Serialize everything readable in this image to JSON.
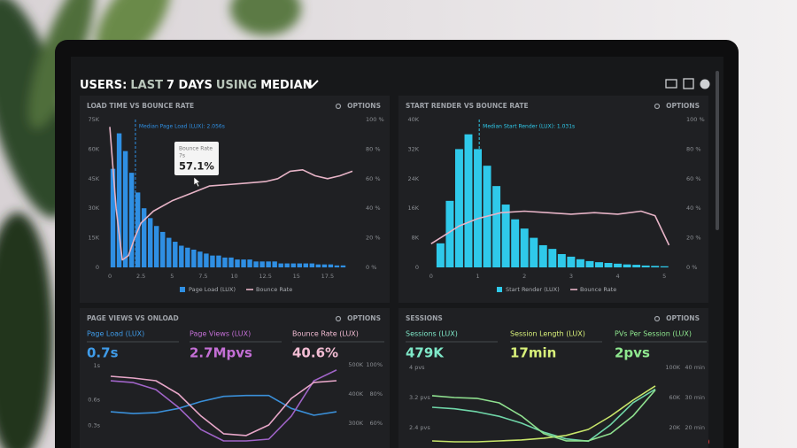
{
  "header": {
    "title_parts": [
      "USERS:",
      "LAST",
      "7 DAYS",
      "USING",
      "MEDIAN"
    ]
  },
  "chart_data": [
    {
      "type": "histogram",
      "title": "LOAD TIME VS BOUNCE RATE",
      "options": "OPTIONS",
      "legend": true,
      "bins": [
        0,
        0.5,
        1,
        1.5,
        2,
        2.5,
        3,
        3.5,
        4,
        4.5,
        5,
        5.5,
        6,
        6.5,
        7,
        7.5,
        8,
        8.5,
        9,
        9.5,
        10,
        10.5,
        11,
        11.5,
        12,
        12.5,
        13,
        13.5,
        14,
        14.5,
        15,
        15.5,
        16,
        16.5,
        17,
        17.5,
        18,
        18.5,
        19
      ],
      "xlim": [
        -0.43,
        20
      ],
      "xticks": [
        0,
        2.5,
        5,
        7.5,
        10,
        12.5,
        15,
        17.5
      ],
      "ylim": [
        0,
        75000
      ],
      "yticks": [
        0,
        {
          "value": 15000,
          "label": "15K"
        },
        {
          "value": 30000,
          "label": "30K"
        },
        {
          "value": 45000,
          "label": "45K"
        },
        {
          "value": 60000,
          "label": "60K"
        },
        {
          "value": 75000,
          "label": "75K"
        }
      ],
      "y2lim": [
        0,
        100
      ],
      "y2ticks": [
        {
          "value": 0,
          "label": "0 %"
        },
        {
          "value": 20,
          "label": "20 %"
        },
        {
          "value": 40,
          "label": "40 %"
        },
        {
          "value": 60,
          "label": "60 %"
        },
        {
          "value": 80,
          "label": "80 %"
        },
        {
          "value": 100,
          "label": "100 %"
        }
      ],
      "series": [
        {
          "name": "Page Load (LUX)",
          "color": "#2f8fe3",
          "values": [
            50000,
            68000,
            59000,
            48000,
            38000,
            30000,
            25000,
            21000,
            18000,
            15000,
            13000,
            11000,
            10000,
            9000,
            8000,
            7000,
            6000,
            6000,
            5000,
            5000,
            4000,
            4000,
            4000,
            3000,
            3000,
            3000,
            3000,
            2000,
            2000,
            2000,
            2000,
            2000,
            2000,
            1500,
            1500,
            1500,
            1000,
            1000
          ]
        },
        {
          "name": "Bounce Rate",
          "color": "#e6b3c6",
          "type": "line",
          "axis": "y2",
          "x": [
            0,
            0.5,
            1,
            1.5,
            2,
            2.5,
            3.5,
            5,
            6.5,
            8,
            9.5,
            11,
            12.5,
            13.5,
            14.5,
            15.5,
            16.5,
            17.5,
            18.5,
            19.5
          ],
          "values": [
            95,
            40,
            5,
            8,
            20,
            30,
            38,
            45,
            50,
            55,
            56,
            57,
            58,
            60,
            65,
            66,
            62,
            60,
            62,
            65
          ]
        }
      ],
      "annotations": [
        {
          "text": "Median Page Load (LUX): 2.056s",
          "x": 2.056
        }
      ],
      "tooltip": {
        "title": "Bounce Rate",
        "x_label": "7s",
        "value_label": "57.1%"
      }
    },
    {
      "type": "histogram",
      "title": "START RENDER VS BOUNCE RATE",
      "options": "OPTIONS",
      "legend": true,
      "bins": [
        0.1,
        0.3,
        0.5,
        0.7,
        0.9,
        1.1,
        1.3,
        1.5,
        1.7,
        1.9,
        2.1,
        2.3,
        2.5,
        2.7,
        2.9,
        3.1,
        3.3,
        3.5,
        3.7,
        3.9,
        4.1,
        4.3,
        4.5,
        4.7,
        4.9,
        5.1
      ],
      "xlim": [
        -0.13,
        5.28
      ],
      "xticks": [
        0,
        1,
        2,
        3,
        4,
        5
      ],
      "ylim": [
        0,
        40000
      ],
      "yticks": [
        0,
        {
          "value": 8000,
          "label": "8K"
        },
        {
          "value": 16000,
          "label": "16K"
        },
        {
          "value": 24000,
          "label": "24K"
        },
        {
          "value": 32000,
          "label": "32K"
        },
        {
          "value": 40000,
          "label": "40K"
        }
      ],
      "y2lim": [
        0,
        100
      ],
      "y2ticks": [
        {
          "value": 0,
          "label": "0 %"
        },
        {
          "value": 20,
          "label": "20 %"
        },
        {
          "value": 40,
          "label": "40 %"
        },
        {
          "value": 60,
          "label": "60 %"
        },
        {
          "value": 80,
          "label": "80 %"
        },
        {
          "value": 100,
          "label": "100 %"
        }
      ],
      "series": [
        {
          "name": "Start Render (LUX)",
          "color": "#2fc9ea",
          "values": [
            6500,
            18000,
            32000,
            36000,
            32000,
            27500,
            22000,
            17000,
            13000,
            10500,
            8000,
            6000,
            5000,
            3600,
            2900,
            2200,
            1700,
            1400,
            1200,
            1000,
            800,
            700,
            500,
            400,
            300
          ]
        },
        {
          "name": "Bounce Rate",
          "color": "#e6b3c6",
          "type": "line",
          "axis": "y2",
          "x": [
            0,
            0.3,
            0.6,
            1,
            1.5,
            2,
            2.5,
            3,
            3.5,
            4,
            4.5,
            4.8,
            5.1
          ],
          "values": [
            16,
            22,
            28,
            33,
            37,
            38,
            37,
            36,
            37,
            36,
            38,
            35,
            15
          ]
        }
      ],
      "annotations": [
        {
          "text": "Median Start Render (LUX): 1.031s",
          "x": 1.031
        }
      ]
    },
    {
      "type": "line",
      "title": "PAGE VIEWS VS ONLOAD",
      "options": "OPTIONS",
      "kpis": [
        {
          "label": "Page Load (LUX)",
          "value": "0.7s",
          "color": "#3f9be8"
        },
        {
          "label": "Page Views (LUX)",
          "value": "2.7Mpvs",
          "color": "#c46fd6"
        },
        {
          "label": "Bounce Rate (LUX)",
          "value": "40.6%",
          "color": "#f2bcd3"
        }
      ],
      "ylim": [
        0.1,
        1.05
      ],
      "yticks": [
        {
          "value": 1,
          "label": "1s"
        },
        {
          "value": 0.6,
          "label": "0.6s"
        },
        {
          "value": 0.3,
          "label": "0.3s"
        }
      ],
      "y2lim": [
        233000,
        512000
      ],
      "y2ticks": [
        {
          "value": 500000,
          "label": "500K"
        },
        {
          "value": 400000,
          "label": "400K"
        },
        {
          "value": 300000,
          "label": "300K"
        }
      ],
      "y3lim": [
        46.7,
        102.4
      ],
      "y3ticks": [
        {
          "value": 100,
          "label": "100%"
        },
        {
          "value": 80,
          "label": "80%"
        },
        {
          "value": 60,
          "label": "60%"
        }
      ],
      "series": [
        {
          "name": "Page Load (LUX)",
          "color": "#3a8fd8",
          "values": [
            0.46,
            0.44,
            0.45,
            0.5,
            0.58,
            0.64,
            0.65,
            0.65,
            0.5,
            0.42,
            0.46
          ]
        },
        {
          "name": "Page Views (LUX)",
          "color": "#a064c8",
          "axis": "y2",
          "values": [
            445000,
            439000,
            415000,
            354000,
            278000,
            239000,
            239000,
            245000,
            324000,
            445000,
            482000
          ]
        },
        {
          "name": "Bounce Rate (LUX)",
          "color": "#e7a6c8",
          "axis": "y3",
          "values": [
            92.1,
            90.9,
            89.1,
            80,
            64.9,
            52.8,
            51.6,
            58.8,
            77,
            87.9,
            89.1
          ]
        }
      ]
    },
    {
      "type": "line",
      "title": "SESSIONS",
      "options": "OPTIONS",
      "kpis": [
        {
          "label": "Sessions (LUX)",
          "value": "479K",
          "color": "#7fe8c8"
        },
        {
          "label": "Session Length (LUX)",
          "value": "17min",
          "color": "#d8f07a"
        },
        {
          "label": "PVs Per Session (LUX)",
          "value": "2pvs",
          "color": "#8fe88f"
        }
      ],
      "ylim": [
        2.0,
        4.165
      ],
      "yticks": [
        {
          "value": 4,
          "label": "4 pvs"
        },
        {
          "value": 3.2,
          "label": "3.2 pvs"
        },
        {
          "value": 2.4,
          "label": "2.4 pvs"
        }
      ],
      "y2lim": [
        0,
        108000
      ],
      "y2ticks": [
        {
          "value": 100000,
          "label": "100K"
        },
        {
          "value": 60000,
          "label": "60K"
        },
        {
          "value": 20000,
          "label": "20K"
        }
      ],
      "y3lim": [
        15,
        42
      ],
      "y3ticks": [
        {
          "value": 40,
          "label": "40 min"
        },
        {
          "value": 30,
          "label": "30 min"
        },
        {
          "value": 20,
          "label": "20 min"
        }
      ],
      "series": [
        {
          "name": "Sessions (LUX)",
          "color": "#6fd6a8",
          "axis": "y2",
          "values": [
            47000,
            45000,
            41000,
            35000,
            26000,
            14000,
            5000,
            2000,
            24000,
            53000,
            71000
          ]
        },
        {
          "name": "Session Length (LUX)",
          "color": "#c8e66a",
          "axis": "y3",
          "values": [
            15.6,
            15.3,
            15.3,
            15.6,
            15.9,
            16.5,
            17.4,
            19.4,
            23.8,
            29.1,
            33.8
          ]
        },
        {
          "name": "PVs Per Session (LUX)",
          "color": "#8fe08f",
          "values": [
            3.25,
            3.2,
            3.18,
            3.06,
            2.71,
            2.24,
            2.05,
            2.05,
            2.24,
            2.71,
            3.4
          ]
        }
      ]
    }
  ]
}
